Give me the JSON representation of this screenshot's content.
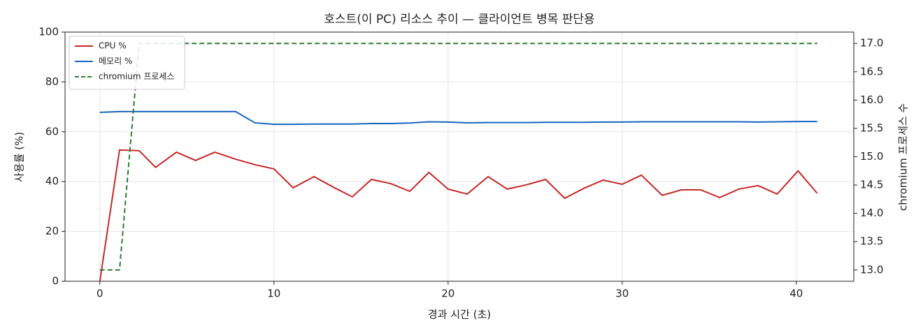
{
  "chart_data": {
    "type": "line",
    "title": "호스트(이 PC) 리소스 추이 — 클라이언트 병목 판단용",
    "x_label": "경과 시간 (초)",
    "y_label": "사용률 (%)",
    "y2_label": "chromium 프로세스 수",
    "x": [
      0,
      1.13,
      2.26,
      3.2,
      4.4,
      5.5,
      6.6,
      7.8,
      8.9,
      10.0,
      11.1,
      12.3,
      13.4,
      14.5,
      15.6,
      16.7,
      17.8,
      18.9,
      20.0,
      21.1,
      22.3,
      23.4,
      24.5,
      25.6,
      26.7,
      27.8,
      28.9,
      30.0,
      31.1,
      32.3,
      33.4,
      34.5,
      35.6,
      36.7,
      37.8,
      38.9,
      40.1,
      41.2
    ],
    "series": [
      {
        "name": "CPU %",
        "color": "#c62828",
        "values": [
          0,
          52.7,
          52.4,
          45.7,
          51.8,
          48.5,
          51.8,
          49.0,
          46.8,
          45.1,
          37.5,
          42.0,
          37.8,
          33.9,
          40.9,
          39.2,
          36.1,
          43.7,
          37.0,
          35.0,
          42.0,
          37.0,
          38.7,
          40.9,
          33.3,
          37.3,
          40.6,
          38.9,
          42.6,
          34.5,
          36.7,
          36.7,
          33.6,
          37.0,
          38.4,
          35.0,
          44.3,
          35.3
        ]
      },
      {
        "name": "메모리 %",
        "color": "#1565c0",
        "values": [
          67.8,
          68.1,
          68.1,
          68.1,
          68.1,
          68.1,
          68.1,
          68.1,
          63.6,
          63.0,
          63.0,
          63.1,
          63.1,
          63.1,
          63.3,
          63.3,
          63.5,
          64.0,
          63.9,
          63.6,
          63.7,
          63.7,
          63.7,
          63.8,
          63.8,
          63.8,
          63.9,
          63.9,
          64.0,
          64.0,
          64.0,
          64.0,
          64.0,
          64.0,
          63.9,
          64.0,
          64.1,
          64.1
        ]
      },
      {
        "name": "chromium 프로세스",
        "color": "#2e7d32",
        "dashed": true,
        "axis": "y2",
        "values": [
          13,
          13,
          17,
          17,
          17,
          17,
          17,
          17,
          17,
          17,
          17,
          17,
          17,
          17,
          17,
          17,
          17,
          17,
          17,
          17,
          17,
          17,
          17,
          17,
          17,
          17,
          17,
          17,
          17,
          17,
          17,
          17,
          17,
          17,
          17,
          17,
          17,
          17
        ]
      }
    ],
    "xlim": [
      -2.0,
      43.3
    ],
    "xticks": [
      0,
      10,
      20,
      30,
      40
    ],
    "ylim": [
      0,
      100
    ],
    "yticks": [
      0,
      20,
      40,
      60,
      80,
      100
    ],
    "y2lim": [
      12.8,
      17.2
    ],
    "y2ticks": [
      {
        "value": 13,
        "label": "13.0"
      },
      {
        "value": 13.5,
        "label": "13.5"
      },
      {
        "value": 14,
        "label": "14.0"
      },
      {
        "value": 14.5,
        "label": "14.5"
      },
      {
        "value": 15,
        "label": "15.0"
      },
      {
        "value": 15.5,
        "label": "15.5"
      },
      {
        "value": 16,
        "label": "16.0"
      },
      {
        "value": 16.5,
        "label": "16.5"
      },
      {
        "value": 17,
        "label": "17.0"
      }
    ],
    "grid": true,
    "legend": "upper-left"
  }
}
